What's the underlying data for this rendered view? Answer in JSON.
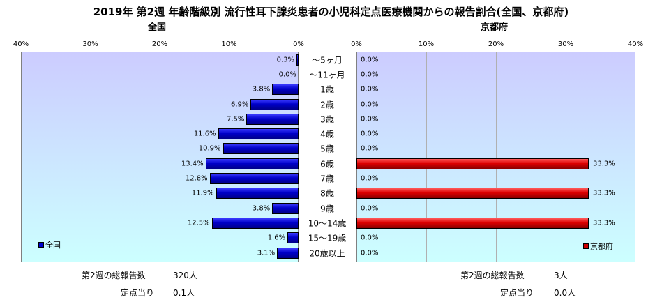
{
  "title": "2019年 第2週 年齢階級別 流行性耳下腺炎患者の小児科定点医療機関からの報告割合(全国、京都府)",
  "chart_data": {
    "type": "bar",
    "categories": [
      "～5ヶ月",
      "～11ヶ月",
      "1歳",
      "2歳",
      "3歳",
      "4歳",
      "5歳",
      "6歳",
      "7歳",
      "8歳",
      "9歳",
      "10～14歳",
      "15～19歳",
      "20歳以上"
    ],
    "xlim": [
      0,
      40
    ],
    "x_ticks": [
      "40%",
      "30%",
      "20%",
      "10%",
      "0%"
    ],
    "x_ticks_right": [
      "0%",
      "10%",
      "20%",
      "30%",
      "40%"
    ],
    "series": [
      {
        "name": "全国",
        "panel_title": "全国",
        "color": "#0000cc",
        "values": [
          0.3,
          0.0,
          3.8,
          6.9,
          7.5,
          11.6,
          10.9,
          13.4,
          12.8,
          11.9,
          3.8,
          12.5,
          1.6,
          3.1
        ],
        "labels": [
          "0.3%",
          "0.0%",
          "3.8%",
          "6.9%",
          "7.5%",
          "11.6%",
          "10.9%",
          "13.4%",
          "12.8%",
          "11.9%",
          "3.8%",
          "12.5%",
          "1.6%",
          "3.1%"
        ]
      },
      {
        "name": "京都府",
        "panel_title": "京都府",
        "color": "#cc0000",
        "values": [
          0.0,
          0.0,
          0.0,
          0.0,
          0.0,
          0.0,
          0.0,
          33.3,
          0.0,
          33.3,
          0.0,
          33.3,
          0.0,
          0.0
        ],
        "labels": [
          "0.0%",
          "0.0%",
          "0.0%",
          "0.0%",
          "0.0%",
          "0.0%",
          "0.0%",
          "33.3%",
          "0.0%",
          "33.3%",
          "0.0%",
          "33.3%",
          "0.0%",
          "0.0%"
        ]
      }
    ],
    "legend": {
      "left": "全国",
      "right": "京都府"
    }
  },
  "footer": {
    "left_total_label": "第2週の総報告数",
    "left_total_value": "320人",
    "left_per_label": "定点当り",
    "left_per_value": "0.1人",
    "right_total_label": "第2週の総報告数",
    "right_total_value": "3人",
    "right_per_label": "定点当り",
    "right_per_value": "0.0人"
  }
}
